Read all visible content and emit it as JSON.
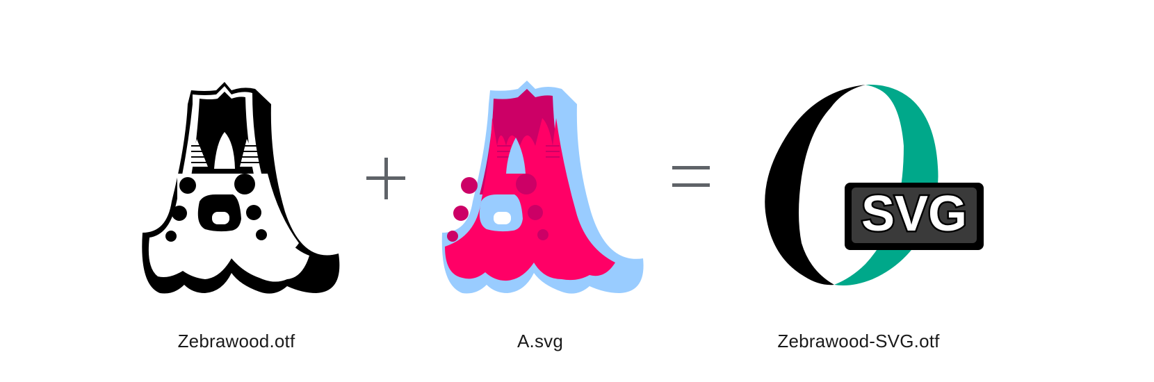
{
  "captions": {
    "font_file": "Zebrawood.otf",
    "svg_file": "A.svg",
    "result_file": "Zebrawood-SVG.otf"
  },
  "badge": {
    "text": "SVG"
  },
  "icons": {
    "glyph_a_mono": "zebrawood-a-glyph-icon",
    "glyph_a_color": "color-a-glyph-icon",
    "plus": "plus-icon",
    "equals": "equals-icon",
    "result": "svg-font-icon"
  },
  "colors": {
    "black": "#000000",
    "pink": "#ff0066",
    "magenta": "#cc0066",
    "light_blue": "#99ccff",
    "green": "#00a88a",
    "operator_gray": "#5f6368"
  }
}
